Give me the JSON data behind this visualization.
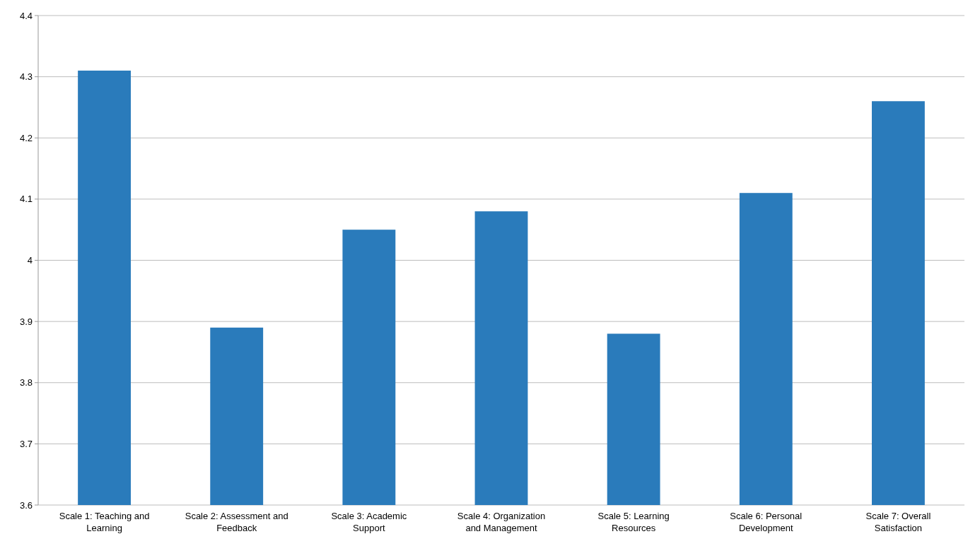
{
  "chart_data": {
    "type": "bar",
    "categories": [
      "Scale 1: Teaching and Learning",
      "Scale 2: Assessment and Feedback",
      "Scale 3: Academic Support",
      "Scale 4: Organization and Management",
      "Scale 5: Learning Resources",
      "Scale 6: Personal Development",
      "Scale 7: Overall Satisfaction"
    ],
    "values": [
      4.31,
      3.89,
      4.05,
      4.08,
      3.88,
      4.11,
      4.26
    ],
    "color": "#2a7bbb",
    "ylim": [
      3.6,
      4.4
    ],
    "yticks": [
      3.6,
      3.7,
      3.8,
      3.9,
      4,
      4.1,
      4.2,
      4.3,
      4.4
    ],
    "grid": "y"
  }
}
